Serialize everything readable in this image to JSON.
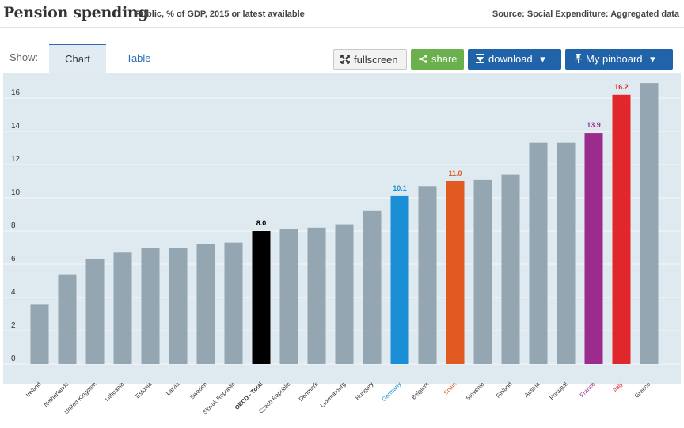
{
  "header": {
    "title": "Pension spending",
    "subtitle": "Public, % of GDP, 2015 or latest available",
    "source": "Source: Social Expenditure: Aggregated data"
  },
  "toolbar": {
    "show_label": "Show:",
    "tab_chart": "Chart",
    "tab_table": "Table",
    "fullscreen_label": "fullscreen",
    "share_label": "share",
    "download_label": "download",
    "pinboard_label": "My pinboard",
    "dropdown_caret": "▾"
  },
  "colors": {
    "default_bar": "#93a6b1",
    "oecd": "#000000",
    "germany": "#1a8fd6",
    "spain": "#e15a21",
    "france": "#9b2c8e",
    "italy": "#e1262c",
    "plot_background": "#dfe9f0"
  },
  "chart_data": {
    "type": "bar",
    "title": "Pension spending",
    "ylim": [
      0,
      17
    ],
    "yticks": [
      0,
      2,
      4,
      6,
      8,
      10,
      12,
      14,
      16
    ],
    "grid": true,
    "categories": [
      "Ireland",
      "Netherlands",
      "United Kingdom",
      "Lithuania",
      "Estonia",
      "Latvia",
      "Sweden",
      "Slovak Republic",
      "OECD - Total",
      "Czech Republic",
      "Denmark",
      "Luxembourg",
      "Hungary",
      "Germany",
      "Belgium",
      "Spain",
      "Slovenia",
      "Finland",
      "Austria",
      "Portugal",
      "France",
      "Italy",
      "Greece"
    ],
    "values": [
      3.6,
      5.4,
      6.3,
      6.7,
      7.0,
      7.0,
      7.2,
      7.3,
      8.0,
      8.1,
      8.2,
      8.4,
      9.2,
      10.1,
      10.7,
      11.0,
      11.1,
      11.4,
      13.3,
      13.3,
      13.9,
      16.2,
      16.9
    ],
    "highlights": {
      "OECD - Total": {
        "color": "#000000",
        "label": "8.0"
      },
      "Germany": {
        "color": "#1a8fd6",
        "label": "10.1"
      },
      "Spain": {
        "color": "#e15a21",
        "label": "11.0"
      },
      "France": {
        "color": "#9b2c8e",
        "label": "13.9"
      },
      "Italy": {
        "color": "#e1262c",
        "label": "16.2"
      }
    }
  }
}
